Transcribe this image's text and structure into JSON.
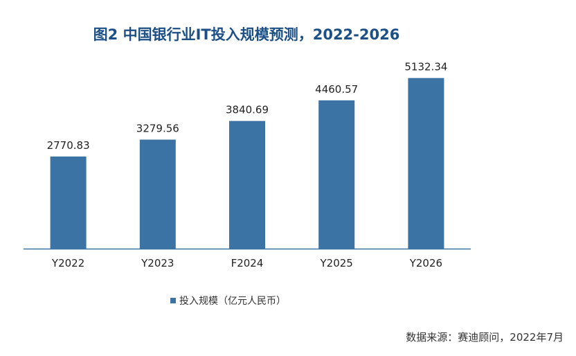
{
  "chart_data": {
    "type": "bar",
    "title": "图2  中国银行业IT投入规模预测，2022-2026",
    "categories": [
      "Y2022",
      "Y2023",
      "F2024",
      "Y2025",
      "Y2026"
    ],
    "series": [
      {
        "name": "投入规模（亿元人民币）",
        "values": [
          2770.83,
          3279.56,
          3840.69,
          4460.57,
          5132.34
        ]
      }
    ],
    "data_labels": [
      "2770.83",
      "3279.56",
      "3840.69",
      "4460.57",
      "5132.34"
    ],
    "ylim": [
      0,
      5500
    ],
    "grid": false,
    "legend_position": "bottom-center",
    "bar_color": "#3a73a4",
    "axis_color": "#3a73a4"
  },
  "source": "数据来源：赛迪顾问，2022年7月"
}
